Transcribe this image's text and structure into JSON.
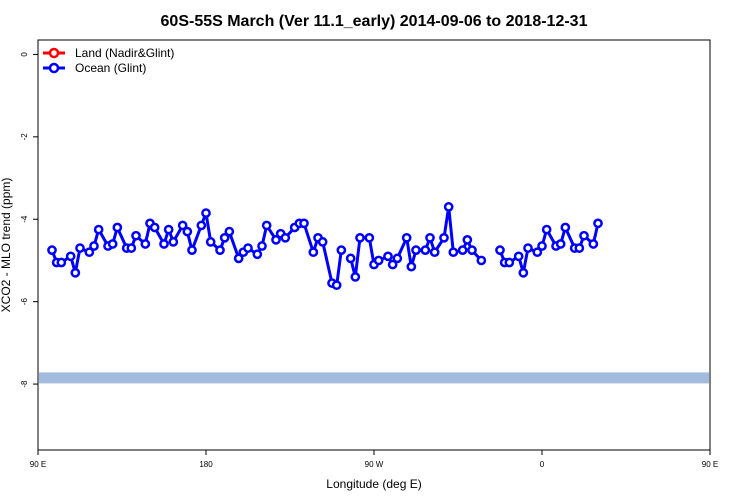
{
  "chart_data": {
    "type": "line",
    "title": "60S-55S March (Ver 11.1_early)   2014-09-06 to 2018-12-31",
    "xlabel": "Longitude (deg E)",
    "ylabel": "XCO2 - MLO trend (ppm)",
    "xlim": [
      90,
      450
    ],
    "ylim": [
      -9.6,
      0.35
    ],
    "x_ticks": [
      {
        "value": 90,
        "label": "90 E"
      },
      {
        "value": 180,
        "label": "180"
      },
      {
        "value": 270,
        "label": "90 W"
      },
      {
        "value": 360,
        "label": "0"
      },
      {
        "value": 450,
        "label": "90 E"
      },
      {
        "value": 540,
        "label": "180"
      }
    ],
    "y_ticks": [
      {
        "value": 0,
        "label": "0"
      },
      {
        "value": -2,
        "label": "-2"
      },
      {
        "value": -4,
        "label": "-4"
      },
      {
        "value": -6,
        "label": "-6"
      },
      {
        "value": -8,
        "label": "-8"
      }
    ],
    "legend": {
      "position": "top-left",
      "entries": [
        {
          "name": "Land (Nadir&Glint)",
          "color": "#ff0000"
        },
        {
          "name": "Ocean (Glint)",
          "color": "#0000ff"
        }
      ]
    },
    "band": {
      "y": -7.85,
      "color": "#a3bbdc"
    },
    "series": [
      {
        "name": "Land (Nadir&Glint)",
        "color": "#ff0000",
        "segments": []
      },
      {
        "name": "Ocean (Glint)",
        "color": "#0000ff",
        "segments": [
          [
            [
              97.5,
              -4.75
            ],
            [
              100,
              -5.05
            ],
            [
              102.5,
              -5.05
            ],
            [
              107.5,
              -4.9
            ],
            [
              110,
              -5.3
            ],
            [
              112.5,
              -4.7
            ],
            [
              117.5,
              -4.8
            ],
            [
              120,
              -4.65
            ],
            [
              122.5,
              -4.25
            ],
            [
              127.5,
              -4.65
            ],
            [
              130,
              -4.6
            ],
            [
              132.5,
              -4.2
            ],
            [
              137.5,
              -4.7
            ],
            [
              140,
              -4.7
            ],
            [
              142.5,
              -4.4
            ],
            [
              147.5,
              -4.6
            ],
            [
              150,
              -4.1
            ],
            [
              152.5,
              -4.2
            ],
            [
              157.5,
              -4.6
            ],
            [
              160,
              -4.25
            ],
            [
              162.5,
              -4.55
            ],
            [
              167.5,
              -4.15
            ],
            [
              170,
              -4.3
            ],
            [
              172.5,
              -4.75
            ],
            [
              177.5,
              -4.15
            ],
            [
              180,
              -3.85
            ],
            [
              182.5,
              -4.55
            ],
            [
              187.5,
              -4.75
            ],
            [
              190,
              -4.45
            ],
            [
              192.5,
              -4.3
            ],
            [
              197.5,
              -4.95
            ],
            [
              200,
              -4.8
            ],
            [
              202.5,
              -4.7
            ],
            [
              207.5,
              -4.85
            ],
            [
              210,
              -4.65
            ],
            [
              212.5,
              -4.15
            ],
            [
              217.5,
              -4.5
            ],
            [
              220,
              -4.35
            ],
            [
              222.5,
              -4.45
            ],
            [
              227.5,
              -4.2
            ],
            [
              230,
              -4.1
            ],
            [
              232.5,
              -4.1
            ],
            [
              237.5,
              -4.8
            ],
            [
              240,
              -4.45
            ],
            [
              242.5,
              -4.55
            ],
            [
              247.5,
              -5.55
            ],
            [
              250,
              -5.6
            ],
            [
              252.5,
              -4.75
            ]
          ],
          [
            [
              257.5,
              -4.95
            ],
            [
              260,
              -5.4
            ],
            [
              262.5,
              -4.45
            ],
            [
              267.5,
              -4.45
            ],
            [
              270,
              -5.1
            ],
            [
              272.5,
              -5.0
            ],
            [
              277.5,
              -4.9
            ],
            [
              280,
              -5.1
            ],
            [
              282.5,
              -4.95
            ],
            [
              287.5,
              -4.45
            ],
            [
              290,
              -5.15
            ],
            [
              292.5,
              -4.75
            ],
            [
              297.5,
              -4.75
            ],
            [
              300,
              -4.45
            ],
            [
              302.5,
              -4.8
            ],
            [
              307.5,
              -4.45
            ],
            [
              310,
              -3.7
            ],
            [
              312.5,
              -4.8
            ],
            [
              317.5,
              -4.75
            ],
            [
              320,
              -4.5
            ],
            [
              322.5,
              -4.75
            ],
            [
              327.5,
              -5.0
            ]
          ],
          [
            [
              337.5,
              -4.75
            ],
            [
              340,
              -5.05
            ],
            [
              342.5,
              -5.05
            ],
            [
              347.5,
              -4.9
            ],
            [
              350,
              -5.3
            ],
            [
              352.5,
              -4.7
            ],
            [
              357.5,
              -4.8
            ],
            [
              360,
              -4.65
            ],
            [
              362.5,
              -4.25
            ],
            [
              367.5,
              -4.65
            ],
            [
              370,
              -4.6
            ],
            [
              372.5,
              -4.2
            ],
            [
              377.5,
              -4.7
            ],
            [
              380,
              -4.7
            ],
            [
              382.5,
              -4.4
            ],
            [
              387.5,
              -4.6
            ],
            [
              390,
              -4.1
            ]
          ]
        ]
      }
    ]
  }
}
